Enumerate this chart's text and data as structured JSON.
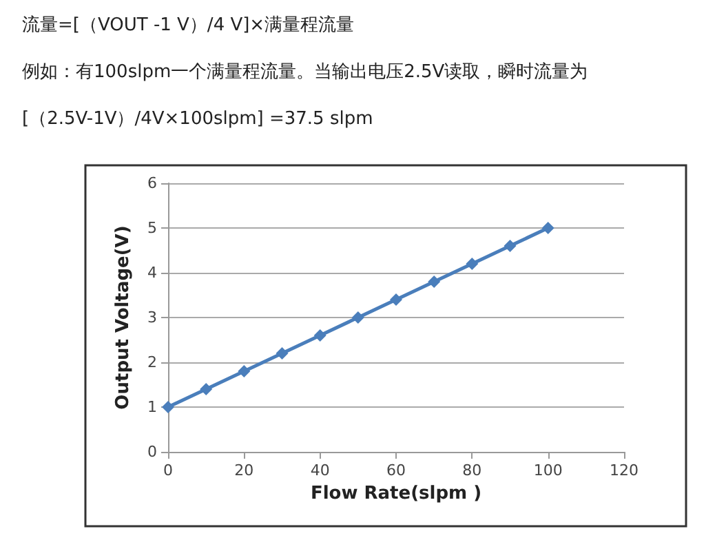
{
  "chart_data": {
    "type": "line",
    "annotations": [
      "流量=[（VOUT -1 V）/4 V]×满量程流量",
      "例如：有100slpm一个满量程流量。当输出电压2.5V读取，瞬时流量为",
      "[（2.5V-1V）/4V×100slpm] =37.5 slpm"
    ],
    "xlabel": "Flow Rate(slpm )",
    "ylabel": "Output Voltage(V)",
    "x": [
      0,
      10,
      20,
      30,
      40,
      50,
      60,
      70,
      80,
      90,
      100
    ],
    "series": [
      {
        "color": "#4a7ebb",
        "values": [
          1,
          1.4,
          1.8,
          2.2,
          2.6,
          3,
          3.4,
          3.8,
          4.2,
          4.6,
          5
        ]
      }
    ],
    "xlim": [
      0,
      120
    ],
    "xticks": [
      0,
      20,
      40,
      60,
      80,
      100,
      120
    ],
    "ylim": [
      0,
      6
    ],
    "yticks": [
      0,
      1,
      2,
      3,
      4,
      5,
      6
    ],
    "grid": "y",
    "marker": "diamond",
    "line_style": "solid"
  }
}
